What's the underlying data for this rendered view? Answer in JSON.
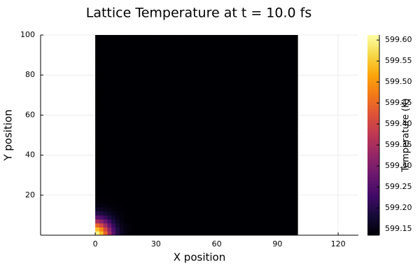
{
  "chart_data": {
    "type": "heatmap",
    "title": "Lattice Temperature at t = 10.0 fs",
    "xlabel": "X position",
    "ylabel": "Y position",
    "colorbar_label": "Temperature (K)",
    "colormap": "inferno",
    "xlim": [
      -27,
      130
    ],
    "ylim": [
      0,
      100
    ],
    "x_ticks": [
      0,
      30,
      60,
      90,
      120
    ],
    "y_ticks": [
      20,
      40,
      60,
      80,
      100
    ],
    "data_extent": {
      "x": [
        0,
        100
      ],
      "y": [
        0,
        100
      ]
    },
    "grid": true,
    "colorbar": {
      "min": 599.135,
      "max": 599.612,
      "ticks": [
        599.15,
        599.2,
        599.25,
        599.3,
        599.35,
        599.4,
        599.45,
        599.5,
        599.55,
        599.6
      ],
      "tick_labels": [
        "599.15",
        "599.20",
        "599.25",
        "599.30",
        "599.35",
        "599.40",
        "599.45",
        "599.50",
        "599.55",
        "599.60"
      ],
      "visible_tick_labels": [
        "599.15",
        "599.20",
        "599.25",
        "599.30",
        "599.35",
        "599.40",
        "599.45",
        "599.50",
        "599.55",
        "599.60"
      ]
    },
    "field": {
      "description_values": "Gaussian hot spot at origin",
      "baseline": 599.135,
      "peak": 599.612,
      "center": [
        0,
        0
      ],
      "sigma": 5.5
    }
  }
}
